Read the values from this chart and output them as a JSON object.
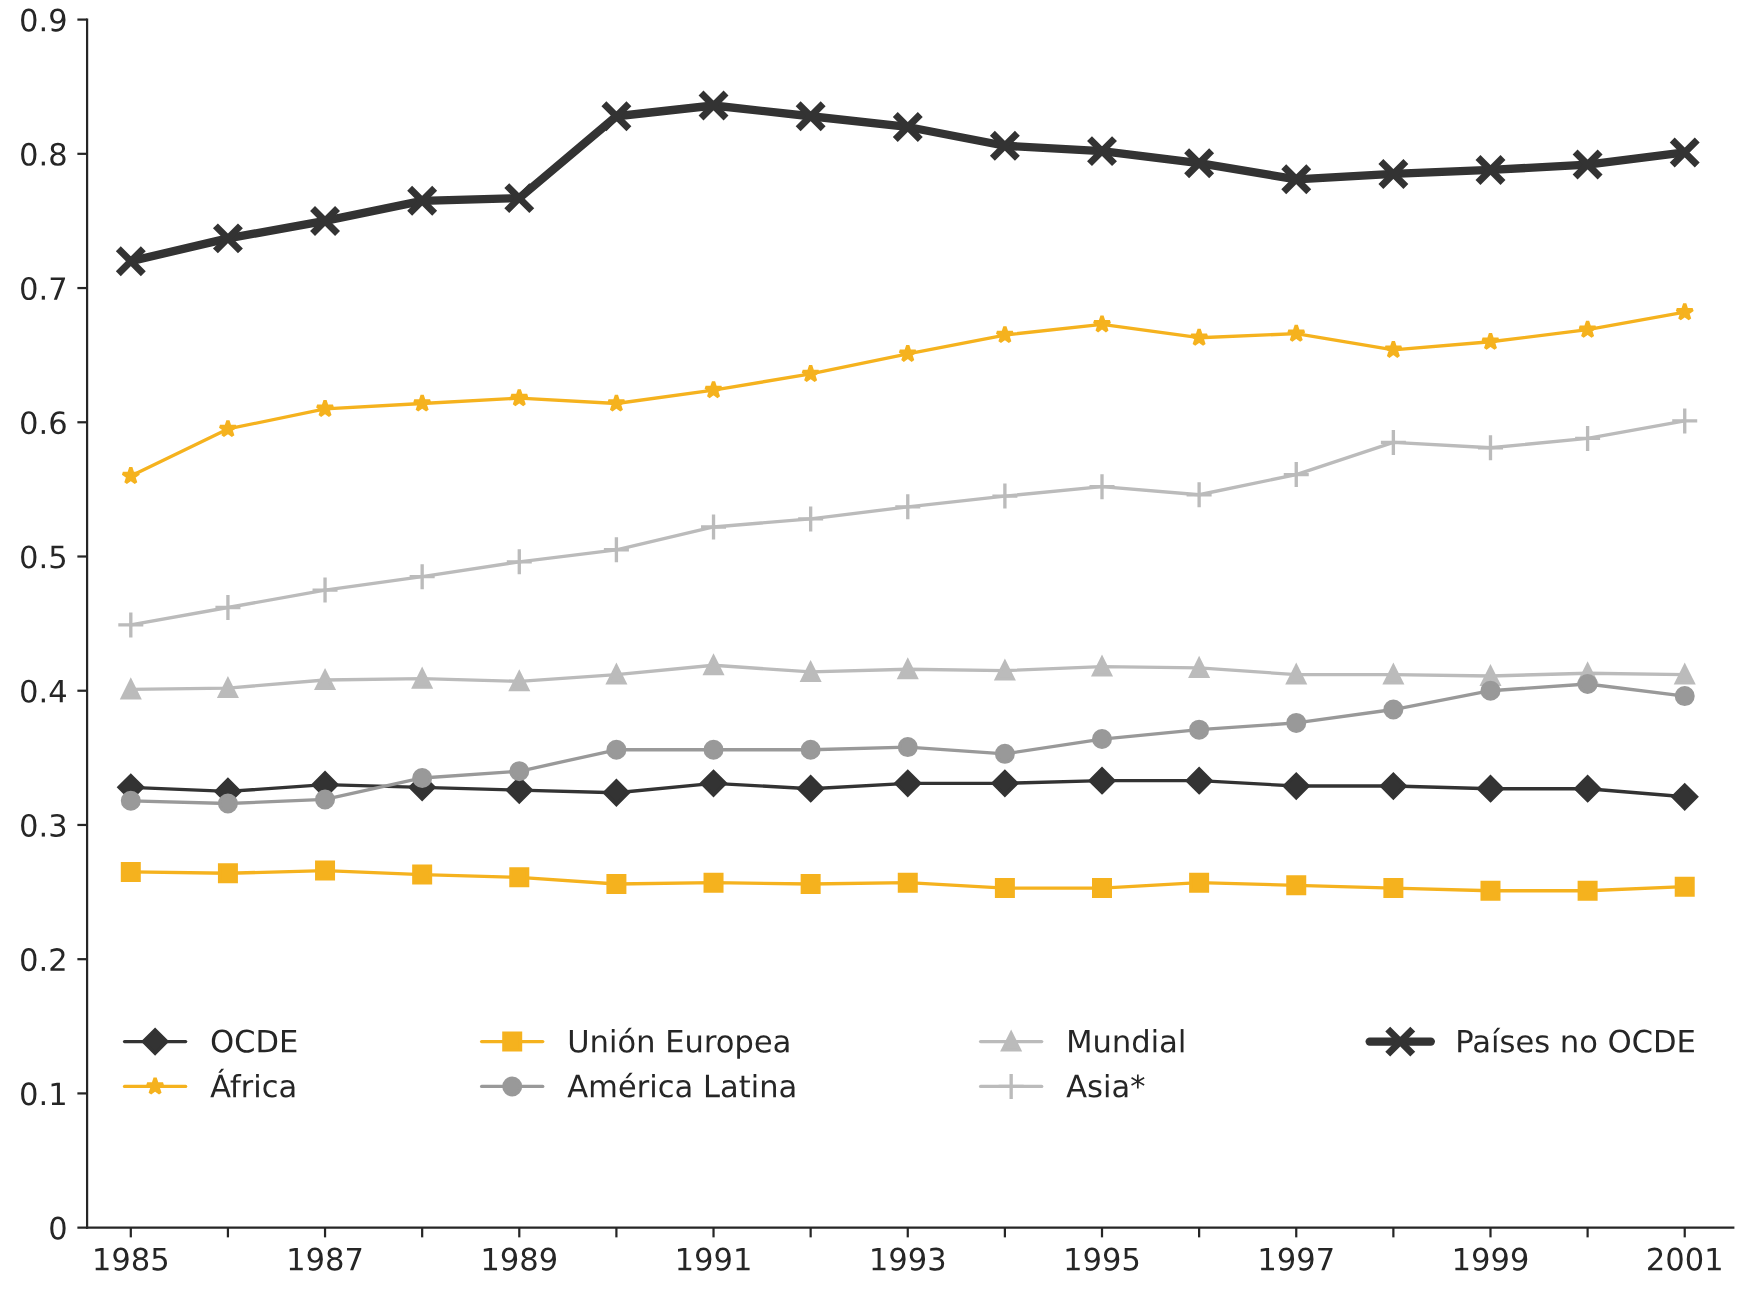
{
  "chart_data": {
    "type": "line",
    "x": [
      1985,
      1986,
      1987,
      1988,
      1989,
      1990,
      1991,
      1992,
      1993,
      1994,
      1995,
      1996,
      1997,
      1998,
      1999,
      2000,
      2001
    ],
    "series": [
      {
        "name": "OCDE",
        "color": "#333333",
        "marker": "diamond",
        "values": [
          0.328,
          0.325,
          0.33,
          0.328,
          0.326,
          0.324,
          0.331,
          0.327,
          0.331,
          0.331,
          0.333,
          0.333,
          0.329,
          0.329,
          0.327,
          0.327,
          0.321
        ]
      },
      {
        "name": "África",
        "color": "#f5b21e",
        "marker": "star",
        "values": [
          0.56,
          0.595,
          0.61,
          0.614,
          0.618,
          0.614,
          0.624,
          0.636,
          0.651,
          0.665,
          0.673,
          0.663,
          0.666,
          0.654,
          0.66,
          0.669,
          0.682
        ]
      },
      {
        "name": "Unión Europea",
        "color": "#f5b21e",
        "marker": "square",
        "values": [
          0.265,
          0.264,
          0.266,
          0.263,
          0.261,
          0.256,
          0.257,
          0.256,
          0.257,
          0.253,
          0.253,
          0.257,
          0.255,
          0.253,
          0.251,
          0.251,
          0.254
        ]
      },
      {
        "name": "América Latina",
        "color": "#999999",
        "marker": "circle",
        "values": [
          0.318,
          0.316,
          0.319,
          0.335,
          0.34,
          0.356,
          0.356,
          0.356,
          0.358,
          0.353,
          0.364,
          0.371,
          0.376,
          0.386,
          0.4,
          0.405,
          0.396
        ]
      },
      {
        "name": "Mundial",
        "color": "#bbbbbb",
        "marker": "triangle",
        "values": [
          0.401,
          0.402,
          0.408,
          0.409,
          0.407,
          0.412,
          0.419,
          0.414,
          0.416,
          0.415,
          0.418,
          0.417,
          0.412,
          0.412,
          0.411,
          0.413,
          0.412
        ]
      },
      {
        "name": "Asia*",
        "color": "#bbbbbb",
        "marker": "cross",
        "values": [
          0.449,
          0.462,
          0.475,
          0.485,
          0.496,
          0.505,
          0.522,
          0.528,
          0.537,
          0.545,
          0.552,
          0.546,
          0.561,
          0.585,
          0.581,
          0.588,
          0.601
        ]
      },
      {
        "name": "Países no OCDE",
        "color": "#333333",
        "marker": "cross",
        "values": [
          0.72,
          0.737,
          0.75,
          0.765,
          0.767,
          0.828,
          0.836,
          0.828,
          0.82,
          0.806,
          0.802,
          0.793,
          0.781,
          0.785,
          0.788,
          0.792,
          0.801
        ]
      }
    ],
    "xlim": [
      1984.55,
      2001.5
    ],
    "xticks": [
      1985,
      {
        "value": 1986,
        "label": null
      },
      1987,
      {
        "value": 1988,
        "label": null
      },
      1989,
      {
        "value": 1990,
        "label": null
      },
      1991,
      {
        "value": 1992,
        "label": null
      },
      1993,
      {
        "value": 1994,
        "label": null
      },
      1995,
      {
        "value": 1996,
        "label": null
      },
      1997,
      {
        "value": 1998,
        "label": null
      },
      1999,
      {
        "value": 2000,
        "label": null
      },
      2001
    ],
    "ylim": [
      0,
      0.9
    ],
    "yticks": [
      0,
      0.1,
      0.2,
      0.3,
      0.4,
      0.5,
      0.6,
      0.7,
      0.8,
      0.9
    ],
    "grid": false,
    "legend": "bottom",
    "line_style": "solid"
  }
}
